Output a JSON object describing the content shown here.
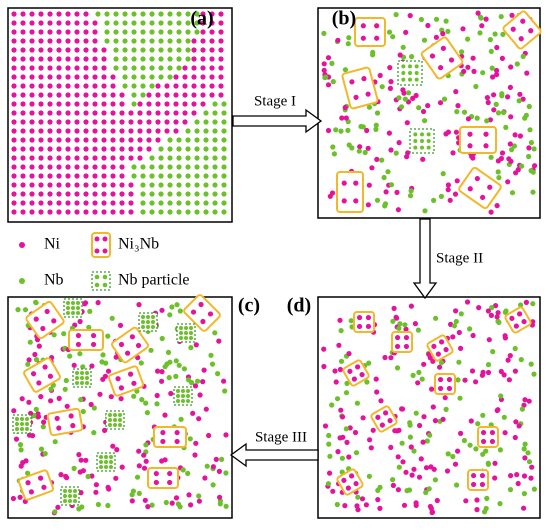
{
  "panels": [
    "(a)",
    "(b)",
    "(c)",
    "(d)"
  ],
  "stages": [
    "Stage I",
    "Stage II",
    "Stage III"
  ],
  "legend": {
    "ni": "Ni",
    "ni3nb": "Ni₃Nb",
    "nb": "Nb",
    "nb_particle": "Nb particle"
  }
}
